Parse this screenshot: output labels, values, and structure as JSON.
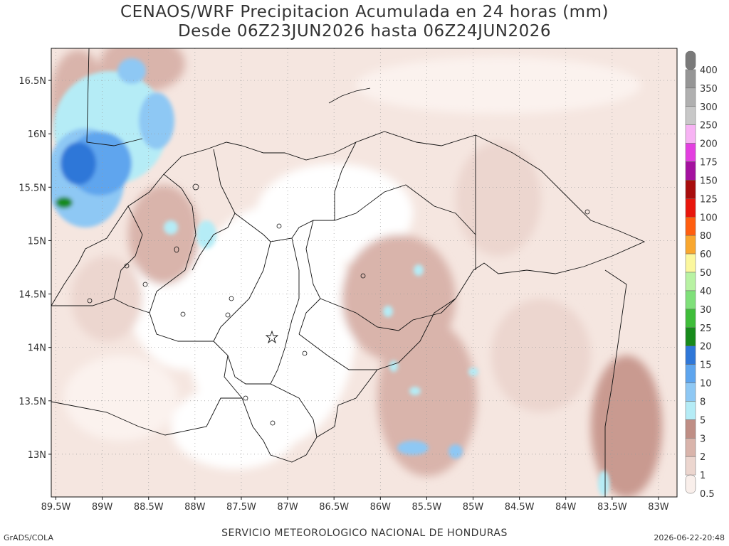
{
  "header": {
    "title_line1": "CENAOS/WRF Precipitacion Acumulada en 24 horas (mm)",
    "title_line2": "Desde 06Z23JUN2026 hasta 06Z24JUN2026"
  },
  "axes": {
    "lat_labels": [
      "16.5N",
      "16N",
      "15.5N",
      "15N",
      "14.5N",
      "14N",
      "13.5N",
      "13N"
    ],
    "lat_values": [
      16.5,
      16,
      15.5,
      15,
      14.5,
      14,
      13.5,
      13
    ],
    "lon_labels": [
      "89.5W",
      "89W",
      "88.5W",
      "88W",
      "87.5W",
      "87W",
      "86.5W",
      "86W",
      "85.5W",
      "85W",
      "84.5W",
      "84W",
      "83.5W",
      "83W"
    ],
    "lon_values": [
      -89.5,
      -89,
      -88.5,
      -88,
      -87.5,
      -87,
      -86.5,
      -86,
      -85.5,
      -85,
      -84.5,
      -84,
      -83.5,
      -83
    ],
    "lon_range": [
      -89.55,
      -82.8
    ],
    "lat_range": [
      12.6,
      16.8
    ]
  },
  "legend": {
    "levels": [
      {
        "label": "400",
        "color": "#7a7a7a"
      },
      {
        "label": "350",
        "color": "#969696"
      },
      {
        "label": "300",
        "color": "#b0b0b0"
      },
      {
        "label": "250",
        "color": "#c8c8c8"
      },
      {
        "label": "200",
        "color": "#f7b3f4"
      },
      {
        "label": "175",
        "color": "#e33fe0"
      },
      {
        "label": "150",
        "color": "#a4119f"
      },
      {
        "label": "125",
        "color": "#a80d0d"
      },
      {
        "label": "100",
        "color": "#e8160c"
      },
      {
        "label": "80",
        "color": "#ff5e0f"
      },
      {
        "label": "60",
        "color": "#f9a72f"
      },
      {
        "label": "50",
        "color": "#fbf79e"
      },
      {
        "label": "40",
        "color": "#b8f2a3"
      },
      {
        "label": "30",
        "color": "#7fe07a"
      },
      {
        "label": "25",
        "color": "#3fbd3a"
      },
      {
        "label": "20",
        "color": "#178a1b"
      },
      {
        "label": "15",
        "color": "#2f77d8"
      },
      {
        "label": "10",
        "color": "#5ea5ee"
      },
      {
        "label": "8",
        "color": "#8ec8f4"
      },
      {
        "label": "5",
        "color": "#b5ecf6"
      },
      {
        "label": "3",
        "color": "#bf8e85"
      },
      {
        "label": "2",
        "color": "#d9b4ab"
      },
      {
        "label": "1",
        "color": "#ecd6cf"
      },
      {
        "label": "0.5",
        "color": "#f9efeb"
      }
    ]
  },
  "footer": {
    "left": "GrADS/COLA",
    "center": "SERVICIO METEOROLOGICO NACIONAL DE HONDURAS",
    "right": "2026-06-22-20:48"
  }
}
